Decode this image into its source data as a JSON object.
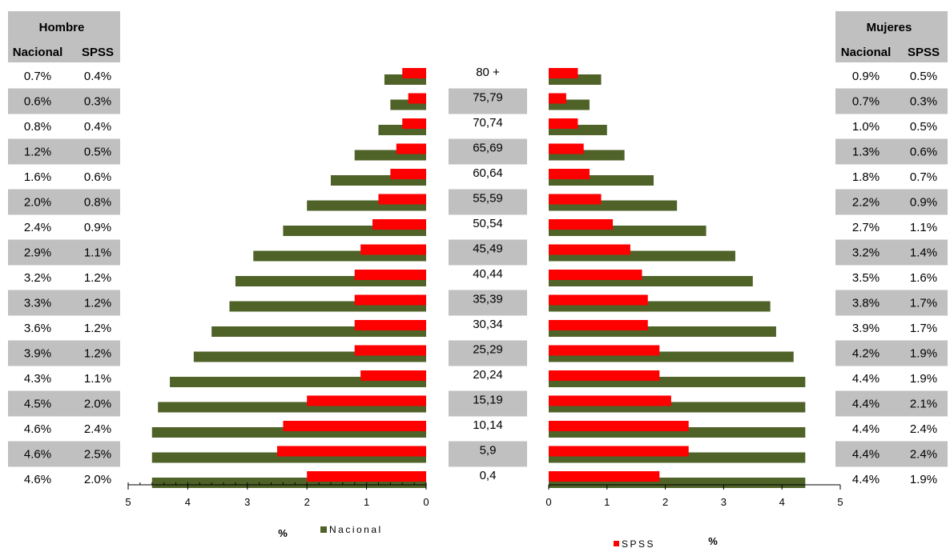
{
  "chart_data": {
    "type": "bar",
    "subtype": "population-pyramid",
    "age_groups": [
      "80 +",
      "75,79",
      "70,74",
      "65,69",
      "60,64",
      "55,59",
      "50,54",
      "45,49",
      "40,44",
      "35,39",
      "30,34",
      "25,29",
      "20,24",
      "15,19",
      "10,14",
      "5,9",
      "0,4"
    ],
    "men": {
      "title": "Hombre",
      "nacional": [
        0.7,
        0.6,
        0.8,
        1.2,
        1.6,
        2.0,
        2.4,
        2.9,
        3.2,
        3.3,
        3.6,
        3.9,
        4.3,
        4.5,
        4.6,
        4.6,
        4.6
      ],
      "spss": [
        0.4,
        0.3,
        0.4,
        0.5,
        0.6,
        0.8,
        0.9,
        1.1,
        1.2,
        1.2,
        1.2,
        1.2,
        1.1,
        2.0,
        2.4,
        2.5,
        2.0
      ],
      "nacional_labels": [
        "0.7%",
        "0.6%",
        "0.8%",
        "1.2%",
        "1.6%",
        "2.0%",
        "2.4%",
        "2.9%",
        "3.2%",
        "3.3%",
        "3.6%",
        "3.9%",
        "4.3%",
        "4.5%",
        "4.6%",
        "4.6%",
        "4.6%"
      ],
      "spss_labels": [
        "0.4%",
        "0.3%",
        "0.4%",
        "0.5%",
        "0.6%",
        "0.8%",
        "0.9%",
        "1.1%",
        "1.2%",
        "1.2%",
        "1.2%",
        "1.2%",
        "1.1%",
        "2.0%",
        "2.4%",
        "2.5%",
        "2.0%"
      ]
    },
    "women": {
      "title": "Mujeres",
      "nacional": [
        0.9,
        0.7,
        1.0,
        1.3,
        1.8,
        2.2,
        2.7,
        3.2,
        3.5,
        3.8,
        3.9,
        4.2,
        4.4,
        4.4,
        4.4,
        4.4,
        4.4
      ],
      "spss": [
        0.5,
        0.3,
        0.5,
        0.6,
        0.7,
        0.9,
        1.1,
        1.4,
        1.6,
        1.7,
        1.7,
        1.9,
        1.9,
        2.1,
        2.4,
        2.4,
        1.9
      ],
      "nacional_labels": [
        "0.9%",
        "0.7%",
        "1.0%",
        "1.3%",
        "1.8%",
        "2.2%",
        "2.7%",
        "3.2%",
        "3.5%",
        "3.8%",
        "3.9%",
        "4.2%",
        "4.4%",
        "4.4%",
        "4.4%",
        "4.4%",
        "4.4%"
      ],
      "spss_labels": [
        "0.5%",
        "0.3%",
        "0.5%",
        "0.6%",
        "0.7%",
        "0.9%",
        "1.1%",
        "1.4%",
        "1.6%",
        "1.7%",
        "1.7%",
        "1.9%",
        "1.9%",
        "2.1%",
        "2.4%",
        "2.4%",
        "1.9%"
      ]
    },
    "col_headers": {
      "nacional": "Nacional",
      "spss": "SPSS"
    },
    "x_ticks_left": [
      "5",
      "4",
      "3",
      "2",
      "1",
      "0"
    ],
    "x_ticks_right": [
      "0",
      "1",
      "2",
      "3",
      "4",
      "5"
    ],
    "xlim": [
      0,
      5
    ],
    "xlabel": "%",
    "legend": [
      {
        "name": "Nacional",
        "color": "#4F6228"
      },
      {
        "name": "SPSS",
        "color": "#FF0000"
      }
    ],
    "colors": {
      "nacional": "#4F6228",
      "spss": "#FF0000",
      "stripe": "#C0C0C0"
    }
  }
}
